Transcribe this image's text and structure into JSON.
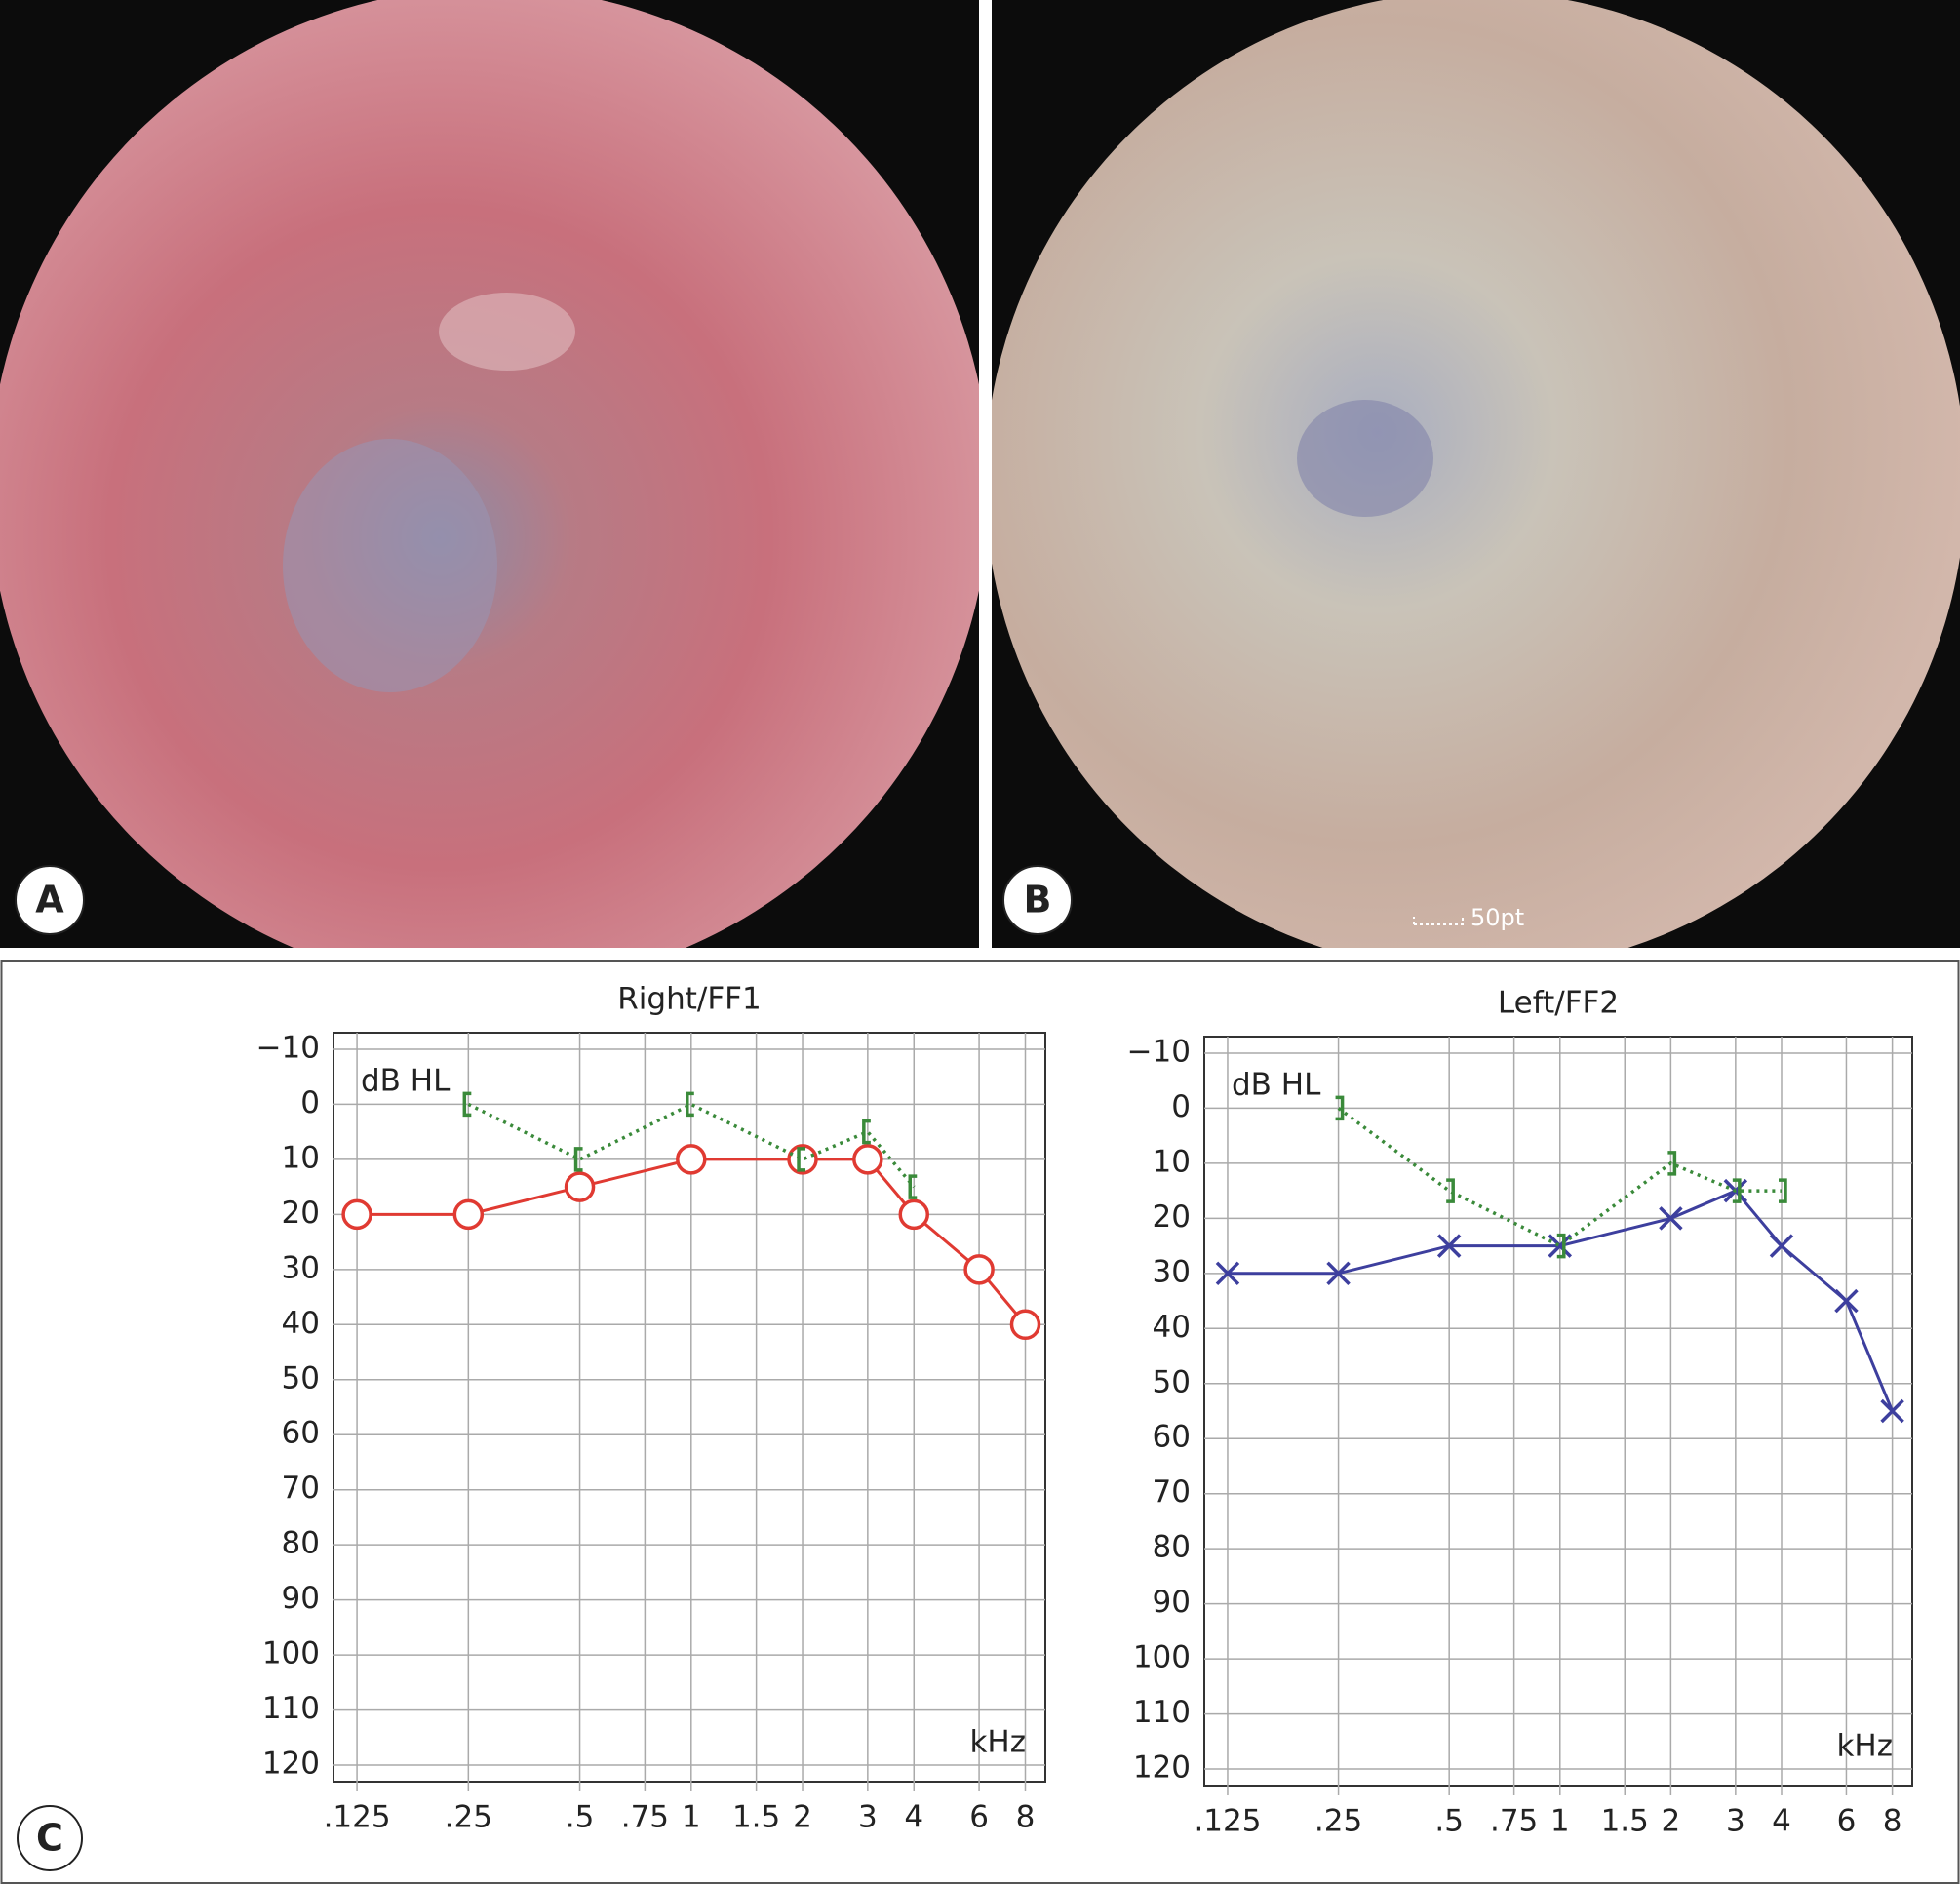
{
  "photo_panels": [
    {
      "label": "A"
    },
    {
      "label": "B",
      "scale_label": "50pt"
    }
  ],
  "chart_panel_label": "C",
  "chart_data": [
    {
      "type": "line",
      "title": "Right/FF1",
      "ylabel": "dB HL",
      "xlabel": "kHz",
      "xscale": "log",
      "grid": true,
      "xlim": [
        0.108,
        9.06
      ],
      "ylim": [
        123,
        -13
      ],
      "xticks": [
        {
          "value": 0.125,
          "label": ".125"
        },
        {
          "value": 0.25,
          "label": ".25"
        },
        {
          "value": 0.5,
          "label": ".5"
        },
        {
          "value": 0.75,
          "label": ".75"
        },
        1,
        1.5,
        2,
        3,
        4,
        6,
        8
      ],
      "yticks": [
        {
          "value": -10,
          "label": "−10"
        },
        0,
        10,
        20,
        30,
        40,
        50,
        60,
        70,
        80,
        90,
        100,
        110,
        120
      ],
      "series": [
        {
          "color": "#e03a32",
          "marker": "circle",
          "line_style": "solid",
          "x": [
            0.125,
            0.25,
            0.5,
            1,
            2,
            3,
            4,
            6,
            8
          ],
          "values": [
            20,
            20,
            15,
            10,
            10,
            10,
            20,
            30,
            40
          ]
        },
        {
          "color": "#3a8a3a",
          "marker": "bracket-left",
          "line_style": "dotted",
          "x": [
            0.25,
            0.5,
            1,
            2,
            3,
            4
          ],
          "values": [
            0,
            10,
            0,
            10,
            5,
            15
          ]
        }
      ]
    },
    {
      "type": "line",
      "title": "Left/FF2",
      "ylabel": "dB HL",
      "xlabel": "kHz",
      "xscale": "log",
      "grid": true,
      "xlim": [
        0.108,
        9.06
      ],
      "ylim": [
        123,
        -13
      ],
      "xticks": [
        {
          "value": 0.125,
          "label": ".125"
        },
        {
          "value": 0.25,
          "label": ".25"
        },
        {
          "value": 0.5,
          "label": ".5"
        },
        {
          "value": 0.75,
          "label": ".75"
        },
        1,
        1.5,
        2,
        3,
        4,
        6,
        8
      ],
      "yticks": [
        {
          "value": -10,
          "label": "−10"
        },
        0,
        10,
        20,
        30,
        40,
        50,
        60,
        70,
        80,
        90,
        100,
        110,
        120
      ],
      "series": [
        {
          "color": "#3d3f9e",
          "marker": "x",
          "line_style": "solid",
          "x": [
            0.125,
            0.25,
            0.5,
            1,
            2,
            3,
            4,
            6,
            8
          ],
          "values": [
            30,
            30,
            25,
            25,
            20,
            15,
            25,
            35,
            55
          ]
        },
        {
          "color": "#3a8a3a",
          "marker": "bracket-right",
          "line_style": "dotted",
          "x": [
            0.25,
            0.5,
            1,
            2,
            3,
            4
          ],
          "values": [
            0,
            15,
            25,
            10,
            15,
            15
          ]
        }
      ]
    }
  ]
}
